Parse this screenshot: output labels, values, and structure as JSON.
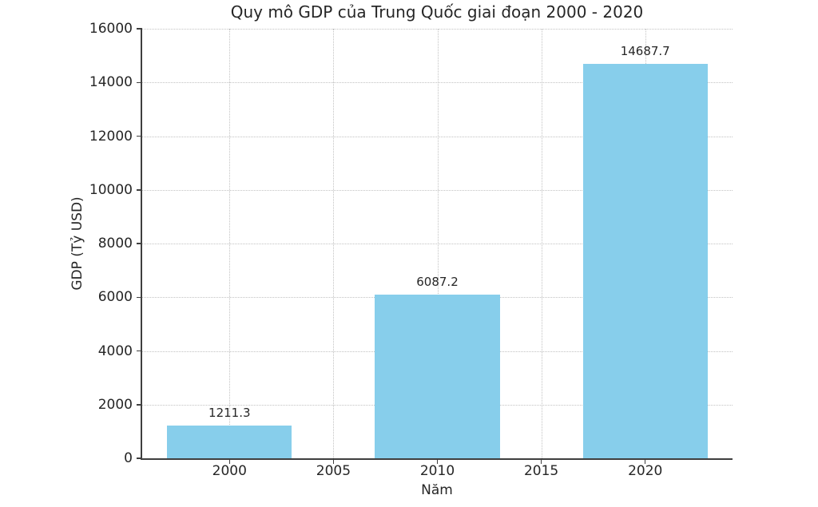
{
  "chart_data": {
    "type": "bar",
    "title": "Quy mô GDP của Trung Quốc giai đoạn 2000 - 2020",
    "xlabel": "Năm",
    "ylabel": "GDP (Tỷ USD)",
    "categories": [
      2000,
      2010,
      2020
    ],
    "values": [
      1211.3,
      6087.2,
      14687.7
    ],
    "value_labels": [
      "1211.3",
      "6087.2",
      "14687.7"
    ],
    "x_ticks": [
      2000,
      2005,
      2010,
      2015,
      2020
    ],
    "x_tick_labels": [
      "2000",
      "2005",
      "2010",
      "2015",
      "2020"
    ],
    "y_ticks": [
      0,
      2000,
      4000,
      6000,
      8000,
      10000,
      12000,
      14000,
      16000
    ],
    "y_tick_labels": [
      "0",
      "2000",
      "4000",
      "6000",
      "8000",
      "10000",
      "12000",
      "14000",
      "16000"
    ],
    "xlim": [
      1995.8,
      2024.2
    ],
    "ylim": [
      0,
      16000
    ],
    "bar_width_years": 6,
    "grid": "dotted",
    "legend": "none",
    "colors": {
      "bar": "#87CEEB",
      "axis": "#3f3f3f",
      "text": "#262626",
      "background": "#ffffff"
    }
  }
}
